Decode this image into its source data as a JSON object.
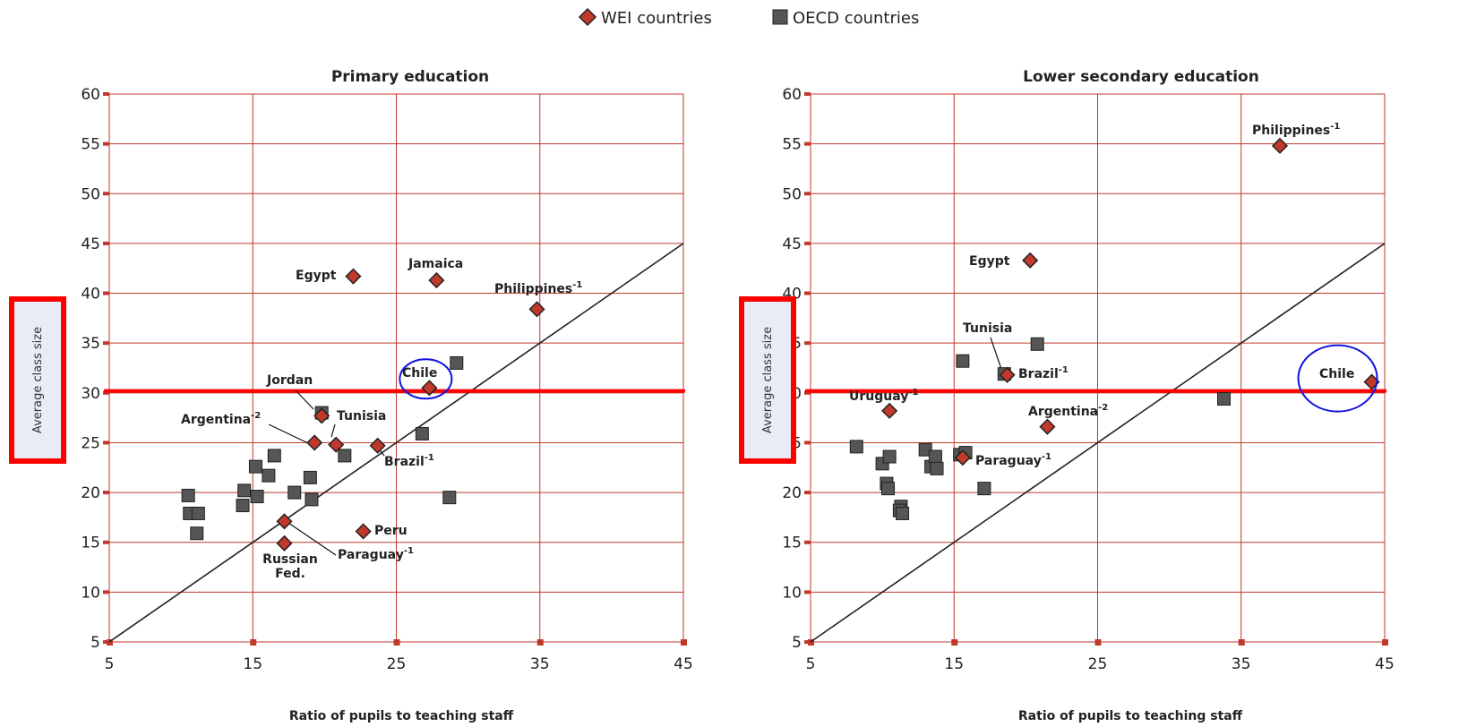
{
  "legend": {
    "wei": {
      "label": "WEI countries",
      "color": "#c0392b",
      "icon": "diamond-icon"
    },
    "oecd": {
      "label": "OECD countries",
      "color": "#555555",
      "icon": "square-icon"
    }
  },
  "colors": {
    "grid": "#c0392b",
    "highlight_line": "#ff0000",
    "circle": "#1010e0",
    "diag": "#222222"
  },
  "chart_data": [
    {
      "type": "scatter",
      "title": "Primary education",
      "xlabel": "Ratio of pupils to teaching staff",
      "ylabel": "Average class size",
      "xlim": [
        5,
        45
      ],
      "ylim": [
        5,
        60
      ],
      "xticks": [
        5,
        15,
        25,
        35,
        45
      ],
      "yticks": [
        5,
        10,
        15,
        20,
        25,
        30,
        35,
        40,
        45,
        50,
        55,
        60
      ],
      "grid": true,
      "reference_line": {
        "type": "diagonal",
        "from": [
          5,
          5
        ],
        "to": [
          45,
          45
        ]
      },
      "highlight_y": 30.2,
      "highlight_circle": "Chile",
      "series": [
        {
          "name": "WEI countries",
          "marker": "diamond",
          "points": [
            {
              "x": 22.0,
              "y": 41.7,
              "label": "Egypt",
              "sup": ""
            },
            {
              "x": 27.8,
              "y": 41.3,
              "label": "Jamaica",
              "sup": ""
            },
            {
              "x": 34.8,
              "y": 38.4,
              "label": "Philippines",
              "sup": "-1"
            },
            {
              "x": 27.3,
              "y": 30.5,
              "label": "Chile",
              "sup": ""
            },
            {
              "x": 19.8,
              "y": 27.7,
              "label": "Jordan",
              "sup": ""
            },
            {
              "x": 20.8,
              "y": 24.8,
              "label": "Tunisia",
              "sup": ""
            },
            {
              "x": 19.3,
              "y": 25.0,
              "label": "Argentina",
              "sup": "-2"
            },
            {
              "x": 23.7,
              "y": 24.7,
              "label": "Brazil",
              "sup": "-1"
            },
            {
              "x": 22.7,
              "y": 16.1,
              "label": "Peru",
              "sup": ""
            },
            {
              "x": 17.2,
              "y": 17.1,
              "label": "Paraguay",
              "sup": "-1"
            },
            {
              "x": 17.2,
              "y": 14.9,
              "label": "Russian Fed.",
              "sup": ""
            }
          ]
        },
        {
          "name": "OECD countries",
          "marker": "square",
          "points": [
            {
              "x": 10.5,
              "y": 19.7
            },
            {
              "x": 10.6,
              "y": 17.9
            },
            {
              "x": 11.2,
              "y": 17.9
            },
            {
              "x": 11.1,
              "y": 15.9
            },
            {
              "x": 14.3,
              "y": 18.7
            },
            {
              "x": 14.4,
              "y": 20.2
            },
            {
              "x": 15.3,
              "y": 19.6
            },
            {
              "x": 15.2,
              "y": 22.6
            },
            {
              "x": 16.1,
              "y": 21.7
            },
            {
              "x": 16.5,
              "y": 23.7
            },
            {
              "x": 17.9,
              "y": 20.0
            },
            {
              "x": 19.0,
              "y": 21.5
            },
            {
              "x": 19.1,
              "y": 19.3
            },
            {
              "x": 19.8,
              "y": 28.0
            },
            {
              "x": 21.4,
              "y": 23.7
            },
            {
              "x": 26.8,
              "y": 25.9
            },
            {
              "x": 28.7,
              "y": 19.5
            },
            {
              "x": 29.2,
              "y": 33.0
            }
          ]
        }
      ]
    },
    {
      "type": "scatter",
      "title": "Lower secondary education",
      "xlabel": "Ratio of pupils to teaching staff",
      "ylabel": "Average class size",
      "xlim": [
        5,
        45
      ],
      "ylim": [
        5,
        60
      ],
      "xticks": [
        5,
        15,
        25,
        35,
        45
      ],
      "yticks": [
        5,
        10,
        15,
        20,
        25,
        30,
        35,
        40,
        45,
        50,
        55,
        60
      ],
      "grid": true,
      "reference_line": {
        "type": "diagonal",
        "from": [
          5,
          5
        ],
        "to": [
          45,
          45
        ]
      },
      "highlight_y": 30.2,
      "highlight_circle": "Chile",
      "series": [
        {
          "name": "WEI countries",
          "marker": "diamond",
          "points": [
            {
              "x": 37.7,
              "y": 54.8,
              "label": "Philippines",
              "sup": "-1"
            },
            {
              "x": 20.3,
              "y": 43.3,
              "label": "Egypt",
              "sup": ""
            },
            {
              "x": 18.7,
              "y": 31.8,
              "label": "Brazil",
              "sup": "-1"
            },
            {
              "x": 44.1,
              "y": 31.1,
              "label": "Chile",
              "sup": ""
            },
            {
              "x": 10.5,
              "y": 28.2,
              "label": "Uruguay",
              "sup": "-1"
            },
            {
              "x": 21.5,
              "y": 26.6,
              "label": "Argentina",
              "sup": "-2"
            },
            {
              "x": 15.6,
              "y": 23.5,
              "label": "Paraguay",
              "sup": "-1"
            }
          ],
          "extra_labels": [
            {
              "label": "Tunisia",
              "sup": ""
            }
          ]
        },
        {
          "name": "OECD countries",
          "marker": "square",
          "points": [
            {
              "x": 8.2,
              "y": 24.6
            },
            {
              "x": 10.0,
              "y": 22.9
            },
            {
              "x": 10.5,
              "y": 23.6
            },
            {
              "x": 10.3,
              "y": 20.9
            },
            {
              "x": 10.4,
              "y": 20.4
            },
            {
              "x": 11.3,
              "y": 18.6
            },
            {
              "x": 11.2,
              "y": 18.2
            },
            {
              "x": 11.4,
              "y": 17.9
            },
            {
              "x": 13.0,
              "y": 24.3
            },
            {
              "x": 13.4,
              "y": 22.6
            },
            {
              "x": 13.7,
              "y": 23.6
            },
            {
              "x": 13.8,
              "y": 22.4
            },
            {
              "x": 15.4,
              "y": 23.8
            },
            {
              "x": 15.8,
              "y": 24.0
            },
            {
              "x": 15.6,
              "y": 33.2
            },
            {
              "x": 17.1,
              "y": 20.4
            },
            {
              "x": 18.5,
              "y": 31.9
            },
            {
              "x": 20.8,
              "y": 34.9
            },
            {
              "x": 33.8,
              "y": 29.4
            }
          ]
        }
      ]
    }
  ]
}
